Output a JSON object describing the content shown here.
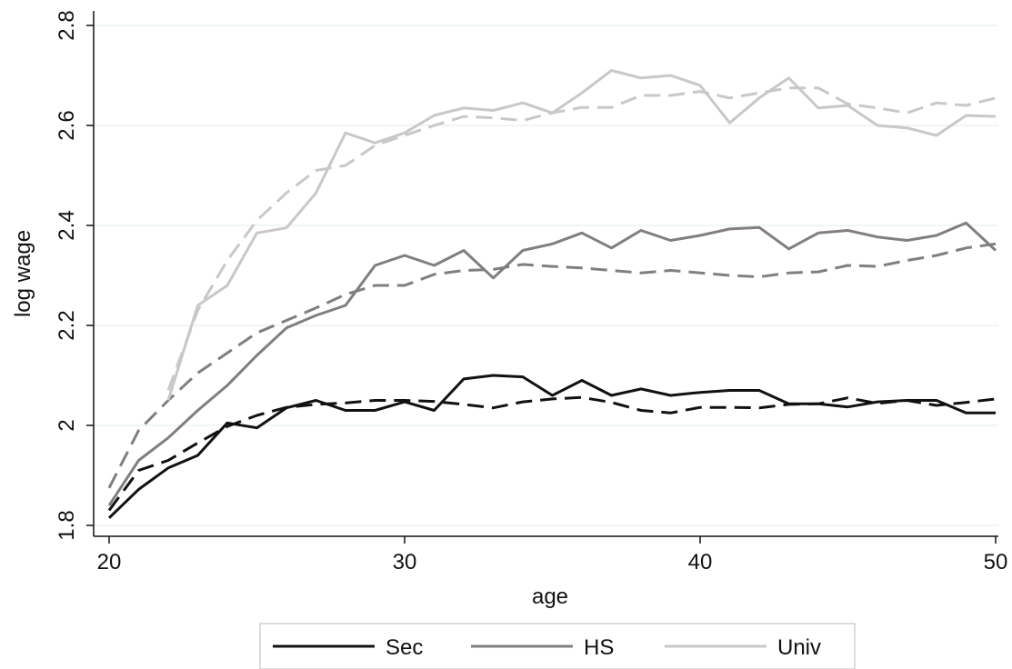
{
  "chart_data": {
    "type": "line",
    "title": "",
    "xlabel": "age",
    "ylabel": "log wage",
    "xlim": [
      20,
      50
    ],
    "ylim": [
      1.8,
      2.8
    ],
    "xticks": [
      20,
      30,
      40,
      50
    ],
    "xtick_labels": [
      "20",
      "30",
      "40",
      "50"
    ],
    "yticks": [
      1.8,
      2.0,
      2.2,
      2.4,
      2.6,
      2.8
    ],
    "ytick_labels": [
      "1.8",
      "2",
      "2.2",
      "2.4",
      "2.6",
      "2.8"
    ],
    "grid": "horizontal",
    "legend_position": "bottom",
    "series": [
      {
        "name": "Sec",
        "style": "solid",
        "color": "#111111",
        "x": [
          20,
          21,
          22,
          23,
          24,
          25,
          26,
          27,
          28,
          29,
          30,
          31,
          32,
          33,
          34,
          35,
          36,
          37,
          38,
          39,
          40,
          41,
          42,
          43,
          44,
          45,
          46,
          47,
          48,
          49,
          50
        ],
        "values": [
          1.815,
          1.872,
          1.915,
          1.94,
          2.005,
          1.995,
          2.035,
          2.05,
          2.03,
          2.03,
          2.047,
          2.03,
          2.093,
          2.1,
          2.097,
          2.06,
          2.09,
          2.06,
          2.073,
          2.06,
          2.066,
          2.07,
          2.07,
          2.043,
          2.043,
          2.037,
          2.047,
          2.05,
          2.05,
          2.025,
          2.025
        ]
      },
      {
        "name": "",
        "style": "dashed",
        "color": "#111111",
        "x": [
          20,
          21,
          22,
          23,
          24,
          25,
          26,
          27,
          28,
          29,
          30,
          31,
          32,
          33,
          34,
          35,
          36,
          37,
          38,
          39,
          40,
          41,
          42,
          43,
          44,
          45,
          46,
          47,
          48,
          49,
          50
        ],
        "values": [
          1.83,
          1.91,
          1.93,
          1.965,
          1.998,
          2.02,
          2.036,
          2.042,
          2.045,
          2.05,
          2.05,
          2.048,
          2.042,
          2.035,
          2.047,
          2.053,
          2.056,
          2.046,
          2.03,
          2.025,
          2.036,
          2.036,
          2.035,
          2.042,
          2.043,
          2.055,
          2.044,
          2.05,
          2.04,
          2.046,
          2.053
        ]
      },
      {
        "name": "HS",
        "style": "solid",
        "color": "#7f7f7f",
        "x": [
          20,
          21,
          22,
          23,
          24,
          25,
          26,
          27,
          28,
          29,
          30,
          31,
          32,
          33,
          34,
          35,
          36,
          37,
          38,
          39,
          40,
          41,
          42,
          43,
          44,
          45,
          46,
          47,
          48,
          49,
          50
        ],
        "values": [
          1.84,
          1.93,
          1.975,
          2.03,
          2.08,
          2.14,
          2.195,
          2.22,
          2.24,
          2.32,
          2.34,
          2.32,
          2.35,
          2.295,
          2.35,
          2.363,
          2.385,
          2.355,
          2.39,
          2.37,
          2.38,
          2.393,
          2.396,
          2.353,
          2.385,
          2.39,
          2.377,
          2.37,
          2.38,
          2.405,
          2.35
        ]
      },
      {
        "name": "",
        "style": "dashed",
        "color": "#7f7f7f",
        "x": [
          20,
          21,
          22,
          23,
          24,
          25,
          26,
          27,
          28,
          29,
          30,
          31,
          32,
          33,
          34,
          35,
          36,
          37,
          38,
          39,
          40,
          41,
          42,
          43,
          44,
          45,
          46,
          47,
          48,
          49,
          50
        ],
        "values": [
          1.875,
          1.99,
          2.05,
          2.105,
          2.145,
          2.185,
          2.21,
          2.235,
          2.262,
          2.28,
          2.28,
          2.302,
          2.31,
          2.312,
          2.322,
          2.318,
          2.315,
          2.31,
          2.305,
          2.31,
          2.305,
          2.3,
          2.297,
          2.305,
          2.307,
          2.32,
          2.318,
          2.33,
          2.34,
          2.355,
          2.363
        ]
      },
      {
        "name": "Univ",
        "style": "solid",
        "color": "#c8c8c8",
        "x": [
          22,
          23,
          24,
          25,
          26,
          27,
          28,
          29,
          30,
          31,
          32,
          33,
          34,
          35,
          36,
          37,
          38,
          39,
          40,
          41,
          42,
          43,
          44,
          45,
          46,
          47,
          48,
          49,
          50
        ],
        "values": [
          2.05,
          2.24,
          2.28,
          2.385,
          2.395,
          2.465,
          2.585,
          2.565,
          2.585,
          2.62,
          2.635,
          2.63,
          2.645,
          2.625,
          2.665,
          2.71,
          2.695,
          2.7,
          2.68,
          2.605,
          2.655,
          2.695,
          2.635,
          2.64,
          2.6,
          2.595,
          2.58,
          2.62,
          2.618
        ]
      },
      {
        "name": "",
        "style": "dashed",
        "color": "#c8c8c8",
        "x": [
          22,
          23,
          24,
          25,
          26,
          27,
          28,
          29,
          30,
          31,
          32,
          33,
          34,
          35,
          36,
          37,
          38,
          39,
          40,
          41,
          42,
          43,
          44,
          45,
          46,
          47,
          48,
          49,
          50
        ],
        "values": [
          2.07,
          2.23,
          2.33,
          2.41,
          2.465,
          2.51,
          2.52,
          2.56,
          2.58,
          2.6,
          2.618,
          2.615,
          2.61,
          2.625,
          2.636,
          2.636,
          2.66,
          2.66,
          2.668,
          2.655,
          2.665,
          2.675,
          2.675,
          2.643,
          2.635,
          2.625,
          2.645,
          2.64,
          2.655
        ]
      }
    ]
  }
}
